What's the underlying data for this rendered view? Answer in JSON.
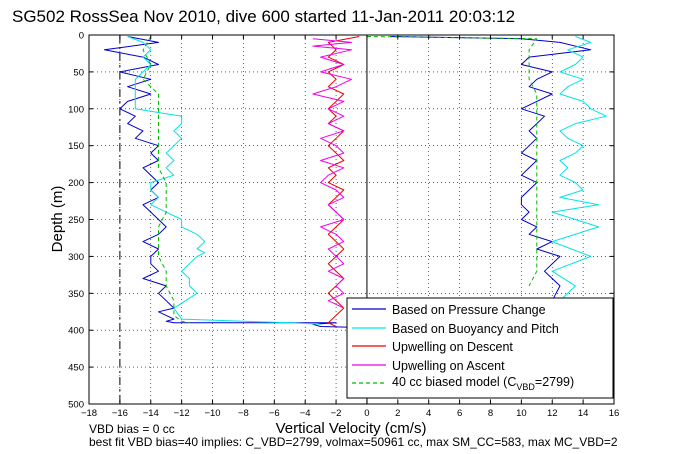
{
  "chart_data": {
    "type": "line",
    "title": "SG502 RossSea Nov 2010, dive 600 started 11-Jan-2011 20:03:12",
    "xlabel": "Vertical Velocity (cm/s)",
    "ylabel": "Depth (m)",
    "xlim": [
      -18,
      16
    ],
    "ylim": [
      0,
      500
    ],
    "y_reversed": true,
    "grid": true,
    "xticks": [
      -18,
      -16,
      -14,
      -12,
      -10,
      -8,
      -6,
      -4,
      -2,
      0,
      2,
      4,
      6,
      8,
      10,
      12,
      14,
      16
    ],
    "yticks": [
      0,
      50,
      100,
      150,
      200,
      250,
      300,
      350,
      400,
      450,
      500
    ],
    "reference_lines_x": [
      -16,
      0,
      16
    ],
    "legend_placement": "lower-right",
    "colors": {
      "pressure": "#0000cc",
      "buoyancy": "#00e5e5",
      "descent": "#ee0000",
      "ascent": "#ee00ee",
      "model": "#00bb00"
    },
    "legend_labels": {
      "pressure": "Based on Pressure Change",
      "buoyancy": "Based on Buoyancy and Pitch",
      "descent": "Upwelling on Descent",
      "ascent": "Upwelling on Ascent",
      "model_prefix": "40 cc biased model (C",
      "model_sub": "VBD",
      "model_suffix": "=2799)"
    },
    "series": [
      {
        "name": "Based on Pressure Change",
        "key": "pressure",
        "x": [
          -15.5,
          -13.5,
          -17,
          -14.5,
          -13.5,
          -16,
          -14,
          -15.5,
          -14,
          -15.5,
          -16,
          -15,
          -15.5,
          -14.5,
          -15,
          -13.5,
          -14,
          -13.5,
          -14.5,
          -14,
          -13.5,
          -14,
          -13.5,
          -14.5,
          -14,
          -13.5,
          -13,
          -13.5,
          -14.5,
          -13.5,
          -14,
          -14,
          -13.5,
          -14.5,
          -13,
          -13.5,
          -13,
          -12.5,
          -13.5,
          -13,
          -12.5,
          -13,
          -12.5,
          -10,
          -2,
          -3.5,
          -3,
          -1
        ],
        "y": [
          2,
          10,
          20,
          30,
          40,
          50,
          60,
          70,
          80,
          90,
          100,
          110,
          120,
          130,
          140,
          150,
          160,
          170,
          180,
          190,
          200,
          210,
          220,
          230,
          240,
          250,
          260,
          270,
          280,
          290,
          300,
          310,
          320,
          330,
          340,
          350,
          360,
          370,
          375,
          380,
          385,
          388,
          390,
          390,
          390,
          392,
          395,
          396
        ]
      },
      {
        "name": "Based on Pressure Change",
        "key": "pressure",
        "x": [
          1.5,
          10,
          12.5,
          14.5,
          10.5,
          10,
          12,
          11,
          10.5,
          12,
          11,
          10,
          11.5,
          11,
          10.5,
          11,
          10.5,
          10,
          11,
          10.5,
          10,
          11,
          10.5,
          10,
          10,
          10.5,
          10,
          11,
          10.5,
          12,
          11,
          12.5,
          11.5,
          12.5,
          12
        ],
        "y": [
          2,
          5,
          10,
          20,
          30,
          40,
          50,
          60,
          70,
          80,
          90,
          100,
          110,
          120,
          130,
          140,
          150,
          160,
          170,
          180,
          190,
          200,
          210,
          220,
          230,
          240,
          250,
          260,
          270,
          280,
          290,
          300,
          320,
          340,
          360
        ]
      },
      {
        "name": "Based on Buoyancy and Pitch",
        "key": "buoyancy",
        "x": [
          -15.5,
          -14.5,
          -14,
          -14.5,
          -14,
          -14.5,
          -15,
          -15,
          -15,
          -12,
          -12,
          -12.5,
          -12,
          -12.5,
          -13,
          -12.5,
          -13,
          -12.5,
          -14,
          -14,
          -13.5,
          -14,
          -13,
          -12,
          -12,
          -11,
          -10.5,
          -11,
          -10.5,
          -11,
          -11.5,
          -12,
          -11.5,
          -11.5,
          -11,
          -12.5,
          -12,
          -5,
          -3
        ],
        "y": [
          2,
          10,
          20,
          30,
          40,
          50,
          60,
          80,
          100,
          110,
          120,
          130,
          140,
          150,
          160,
          170,
          180,
          190,
          200,
          210,
          220,
          230,
          240,
          250,
          260,
          270,
          280,
          290,
          295,
          300,
          310,
          320,
          330,
          340,
          350,
          370,
          385,
          390,
          392
        ]
      },
      {
        "name": "Based on Buoyancy and Pitch",
        "key": "buoyancy",
        "x": [
          13.5,
          14.5,
          13,
          14,
          13.5,
          12.5,
          14,
          13,
          12.5,
          14,
          14.5,
          15.5,
          13.5,
          12.5,
          13,
          14,
          13.5,
          12.5,
          13,
          12.5,
          13.5,
          14,
          12.5,
          15,
          12,
          13.5,
          15,
          12,
          14.5,
          12,
          13.5,
          12.5
        ],
        "y": [
          2,
          10,
          20,
          30,
          40,
          50,
          60,
          70,
          80,
          90,
          100,
          110,
          120,
          130,
          140,
          150,
          160,
          170,
          180,
          190,
          200,
          210,
          220,
          230,
          240,
          250,
          260,
          280,
          300,
          320,
          340,
          360
        ]
      },
      {
        "name": "Upwelling on Descent",
        "key": "descent",
        "x": [
          -0.5,
          -2.5,
          -2,
          -2.5,
          -1.5,
          -2.5,
          -2,
          -2.5,
          -1.5,
          -2,
          -2.5,
          -2,
          -2.5,
          -1.5,
          -2,
          -2.5,
          -2,
          -1.5,
          -2.5,
          -2,
          -2.5,
          -1.5,
          -2,
          -2.5,
          -2,
          -1.5,
          -2,
          -2.5,
          -2,
          -1.5,
          -2,
          -2.5,
          -2,
          -1.5,
          -2,
          -2.5,
          -2,
          -1.5,
          -2,
          -2.5,
          -2
        ],
        "y": [
          2,
          10,
          20,
          30,
          40,
          50,
          60,
          70,
          80,
          90,
          100,
          110,
          120,
          130,
          140,
          150,
          160,
          170,
          180,
          190,
          200,
          210,
          220,
          230,
          240,
          250,
          260,
          270,
          280,
          290,
          300,
          310,
          320,
          330,
          340,
          350,
          360,
          370,
          380,
          390,
          395
        ]
      },
      {
        "name": "Upwelling on Ascent",
        "key": "ascent",
        "x": [
          -3.5,
          -1,
          -3.5,
          -1,
          -3,
          -1.5,
          -3,
          -1,
          -2,
          -3.5,
          -1.5,
          -2.5,
          -1.5,
          -2.5,
          -1.5,
          -3,
          -2,
          -1.5,
          -3,
          -1.5,
          -2.5,
          -3,
          -2,
          -1.5,
          -2.5,
          -2,
          -1.5,
          -3,
          -2,
          -1.5,
          -2.5,
          -2,
          -1.5,
          -2.5,
          -1.5,
          -2,
          -1.5,
          -2.5,
          -1.5
        ],
        "y": [
          5,
          10,
          15,
          20,
          30,
          40,
          50,
          60,
          70,
          80,
          90,
          100,
          110,
          120,
          130,
          140,
          150,
          160,
          170,
          180,
          190,
          200,
          210,
          220,
          230,
          240,
          250,
          260,
          270,
          280,
          290,
          300,
          310,
          320,
          330,
          340,
          350,
          360,
          370
        ]
      },
      {
        "name": "40 cc biased model (CVBD=2799)",
        "key": "model",
        "dashed": true,
        "x": [
          -14,
          -14.5,
          -14,
          -14.5,
          -13.5,
          -13.5,
          -13.5,
          -13.5,
          -13.5,
          -13.5,
          -13,
          -13,
          -13,
          -13.5,
          -13.5,
          -13.5,
          -13,
          -13,
          -12.5,
          -12.5,
          -12,
          -11.5
        ],
        "y": [
          2,
          20,
          40,
          60,
          80,
          100,
          120,
          140,
          160,
          180,
          200,
          220,
          240,
          260,
          280,
          300,
          320,
          340,
          360,
          380,
          388,
          390
        ]
      },
      {
        "name": "40 cc biased model (CVBD=2799)",
        "key": "model",
        "dashed": true,
        "x": [
          0,
          11,
          10.5,
          10.5,
          10.5,
          11,
          11,
          11,
          11,
          11,
          11,
          11,
          11,
          11,
          11,
          11,
          11,
          11,
          10.5
        ],
        "y": [
          2,
          5,
          20,
          40,
          60,
          80,
          100,
          120,
          140,
          160,
          180,
          200,
          220,
          240,
          260,
          280,
          300,
          320,
          340
        ]
      }
    ]
  },
  "footnote_lines": [
    "VBD bias = 0 cc",
    "best fit VBD bias=40 implies: C_VBD=2799, volmax=50961 cc, max SM_CC=583, max MC_VBD=2"
  ]
}
